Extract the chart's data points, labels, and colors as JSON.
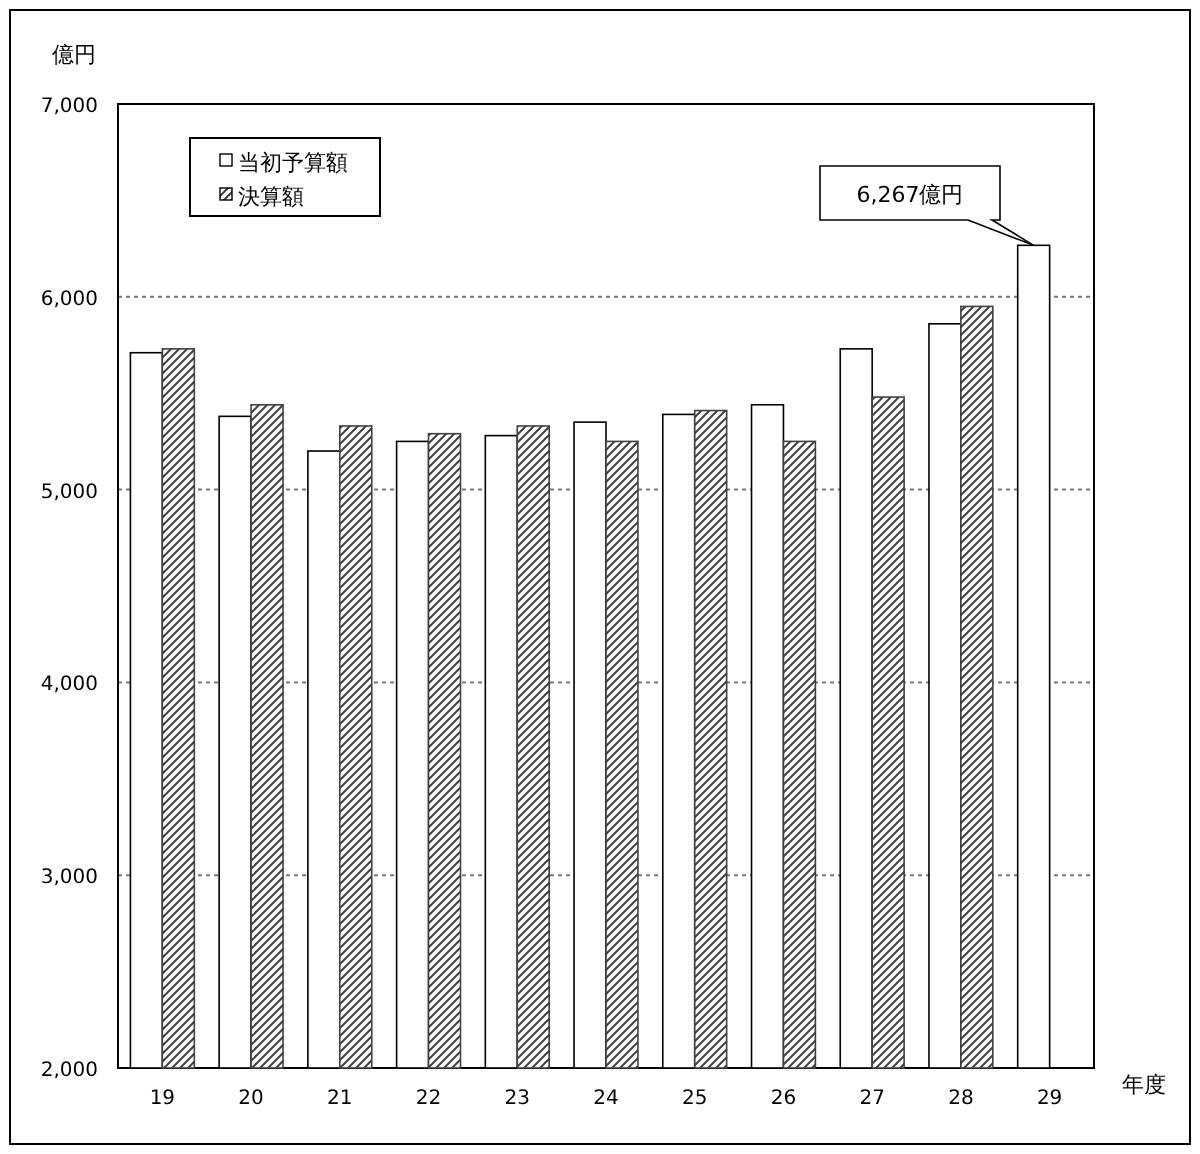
{
  "chart_data": {
    "type": "bar",
    "ylabel": "億円",
    "xlabel": "年度",
    "categories": [
      "19",
      "20",
      "21",
      "22",
      "23",
      "24",
      "25",
      "26",
      "27",
      "28",
      "29"
    ],
    "series": [
      {
        "name": "当初予算額",
        "color": "#ffffff",
        "values": [
          5710,
          5380,
          5200,
          5250,
          5280,
          5350,
          5390,
          5440,
          5730,
          5860,
          6267
        ]
      },
      {
        "name": "決算額",
        "color": "#404040",
        "values": [
          5730,
          5440,
          5330,
          5290,
          5330,
          5250,
          5410,
          5250,
          5480,
          5950,
          null
        ]
      }
    ],
    "ylim": [
      2000,
      7000
    ],
    "yticks": [
      {
        "value": 2000,
        "label": "2,000"
      },
      {
        "value": 3000,
        "label": "3,000"
      },
      {
        "value": 4000,
        "label": "4,000"
      },
      {
        "value": 5000,
        "label": "5,000"
      },
      {
        "value": 6000,
        "label": "6,000"
      },
      {
        "value": 7000,
        "label": "7,000"
      }
    ],
    "grid": "y",
    "legend": "top left",
    "annotations": [
      "6,267億円"
    ]
  }
}
